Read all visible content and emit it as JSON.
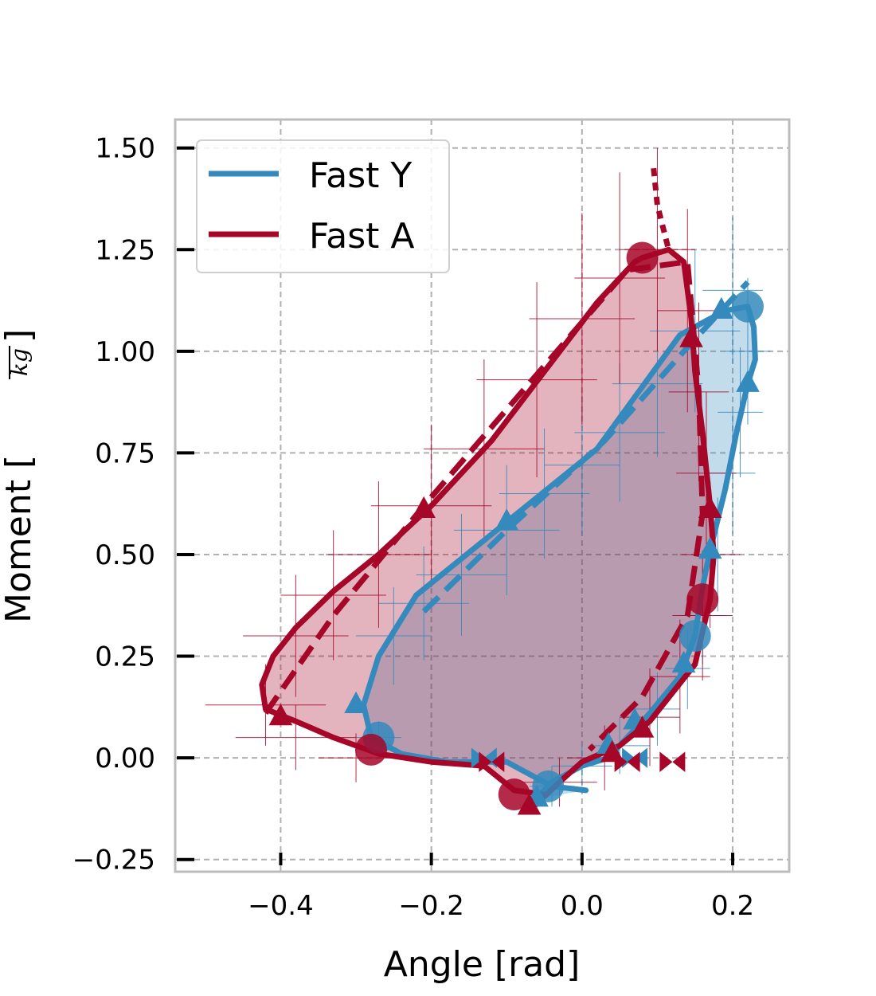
{
  "colors": {
    "fast_y": "#348abd",
    "fast_a": "#a60628",
    "grid": "#b0b0b0",
    "frame": "#bcbcbc"
  },
  "chart_data": {
    "type": "line",
    "title": "",
    "xlabel": "Angle [rad]",
    "ylabel": "Moment [",
    "ylabel_unit": "kg",
    "xlim": [
      -0.54,
      0.275
    ],
    "ylim": [
      -0.28,
      1.57
    ],
    "x_ticks": [
      -0.4,
      -0.2,
      0.0,
      0.2
    ],
    "x_tick_labels": [
      "−0.4",
      "−0.2",
      "0.0",
      "0.2"
    ],
    "y_ticks": [
      -0.25,
      0.0,
      0.25,
      0.5,
      0.75,
      1.0,
      1.25,
      1.5
    ],
    "y_tick_labels": [
      "−0.25",
      "0.00",
      "0.25",
      "0.50",
      "0.75",
      "1.00",
      "1.25",
      "1.50"
    ],
    "grid": true,
    "legend": {
      "placement": "top-left",
      "entries": [
        "Fast Y",
        "Fast A"
      ]
    },
    "series": [
      {
        "name": "Fast Y",
        "color": "#348abd",
        "loop": [
          [
            0.005,
            -0.08
          ],
          [
            -0.04,
            -0.07
          ],
          [
            -0.1,
            -0.01
          ],
          [
            -0.18,
            -0.01
          ],
          [
            -0.24,
            0.01
          ],
          [
            -0.28,
            0.05
          ],
          [
            -0.29,
            0.13
          ],
          [
            -0.27,
            0.25
          ],
          [
            -0.22,
            0.4
          ],
          [
            -0.1,
            0.58
          ],
          [
            0.02,
            0.76
          ],
          [
            0.13,
            1.04
          ],
          [
            0.19,
            1.1
          ],
          [
            0.22,
            1.11
          ],
          [
            0.228,
            1.06
          ],
          [
            0.23,
            0.98
          ],
          [
            0.22,
            0.92
          ],
          [
            0.205,
            0.8
          ],
          [
            0.19,
            0.66
          ],
          [
            0.17,
            0.51
          ],
          [
            0.16,
            0.42
          ],
          [
            0.15,
            0.3
          ],
          [
            0.13,
            0.2
          ],
          [
            0.09,
            0.11
          ],
          [
            0.05,
            0.03
          ],
          [
            0.035,
            0.0
          ],
          [
            0.0,
            -0.02
          ],
          [
            -0.04,
            -0.06
          ],
          [
            -0.06,
            -0.1
          ]
        ],
        "dashed": [
          [
            -0.21,
            0.36
          ],
          [
            -0.1,
            0.56
          ],
          [
            0.03,
            0.78
          ],
          [
            0.14,
            1.01
          ],
          [
            0.22,
            1.17
          ]
        ],
        "markers_circle": [
          [
            -0.27,
            0.05
          ],
          [
            0.22,
            1.11
          ],
          [
            0.15,
            0.3
          ],
          [
            -0.045,
            -0.07
          ]
        ],
        "markers_triangle": [
          [
            -0.3,
            0.13
          ],
          [
            -0.1,
            0.58
          ],
          [
            0.185,
            1.1
          ],
          [
            0.22,
            0.92
          ],
          [
            0.17,
            0.51
          ],
          [
            0.135,
            0.23
          ],
          [
            0.07,
            0.09
          ],
          [
            0.035,
            0.03
          ],
          [
            -0.06,
            -0.1
          ]
        ],
        "markers_bowtie": [
          [
            -0.13,
            0.0
          ],
          [
            0.07,
            0.0
          ]
        ],
        "errorbars": [
          [
            -0.27,
            0.05,
            0.03,
            0.04
          ],
          [
            -0.25,
            0.3,
            0.05,
            0.12
          ],
          [
            -0.21,
            0.38,
            0.06,
            0.14
          ],
          [
            -0.16,
            0.45,
            0.06,
            0.15
          ],
          [
            -0.1,
            0.56,
            0.07,
            0.16
          ],
          [
            -0.05,
            0.65,
            0.06,
            0.16
          ],
          [
            0.0,
            0.72,
            0.05,
            0.17
          ],
          [
            0.05,
            0.8,
            0.06,
            0.17
          ],
          [
            0.1,
            0.92,
            0.06,
            0.18
          ],
          [
            0.15,
            1.05,
            0.06,
            0.2
          ],
          [
            0.2,
            1.15,
            0.04,
            0.18
          ],
          [
            0.22,
            1.0,
            0.03,
            0.18
          ],
          [
            0.21,
            0.85,
            0.03,
            0.16
          ],
          [
            0.2,
            0.7,
            0.03,
            0.15
          ],
          [
            0.18,
            0.5,
            0.03,
            0.14
          ],
          [
            0.16,
            0.35,
            0.03,
            0.12
          ],
          [
            0.14,
            0.22,
            0.03,
            0.1
          ],
          [
            0.1,
            0.12,
            0.03,
            0.09
          ],
          [
            0.05,
            0.03,
            0.04,
            0.07
          ],
          [
            0.0,
            -0.02,
            0.04,
            0.05
          ],
          [
            -0.04,
            -0.07,
            0.03,
            0.05
          ]
        ]
      },
      {
        "name": "Fast A",
        "color": "#a60628",
        "loop": [
          [
            -0.05,
            -0.09
          ],
          [
            -0.09,
            -0.08
          ],
          [
            -0.13,
            -0.02
          ],
          [
            -0.2,
            -0.01
          ],
          [
            -0.27,
            0.01
          ],
          [
            -0.33,
            0.05
          ],
          [
            -0.38,
            0.09
          ],
          [
            -0.42,
            0.12
          ],
          [
            -0.425,
            0.18
          ],
          [
            -0.41,
            0.25
          ],
          [
            -0.38,
            0.32
          ],
          [
            -0.33,
            0.41
          ],
          [
            -0.27,
            0.5
          ],
          [
            -0.2,
            0.62
          ],
          [
            -0.12,
            0.78
          ],
          [
            -0.05,
            0.95
          ],
          [
            0.02,
            1.12
          ],
          [
            0.07,
            1.22
          ],
          [
            0.08,
            1.23
          ],
          [
            0.115,
            1.25
          ],
          [
            0.135,
            1.22
          ],
          [
            0.145,
            1.08
          ],
          [
            0.15,
            0.95
          ],
          [
            0.16,
            0.8
          ],
          [
            0.17,
            0.62
          ],
          [
            0.175,
            0.5
          ],
          [
            0.17,
            0.39
          ],
          [
            0.15,
            0.23
          ],
          [
            0.09,
            0.09
          ],
          [
            0.05,
            0.03
          ],
          [
            0.0,
            -0.01
          ],
          [
            -0.03,
            -0.06
          ],
          [
            -0.07,
            -0.13
          ]
        ],
        "dashed": [
          [
            -0.42,
            0.11
          ],
          [
            -0.33,
            0.35
          ],
          [
            -0.21,
            0.62
          ],
          [
            -0.08,
            0.9
          ],
          [
            0.06,
            1.2
          ],
          [
            0.14,
            1.22
          ],
          [
            0.155,
            0.9
          ],
          [
            0.16,
            0.6
          ],
          [
            0.14,
            0.35
          ],
          [
            0.08,
            0.15
          ],
          [
            0.01,
            0.02
          ]
        ],
        "dotted": [
          [
            0.095,
            1.45
          ],
          [
            0.1,
            1.36
          ],
          [
            0.115,
            1.25
          ]
        ],
        "markers_circle": [
          [
            -0.28,
            0.02
          ],
          [
            0.08,
            1.23
          ],
          [
            0.16,
            0.39
          ],
          [
            -0.09,
            -0.09
          ]
        ],
        "markers_triangle": [
          [
            -0.4,
            0.1
          ],
          [
            -0.21,
            0.61
          ],
          [
            0.145,
            1.03
          ],
          [
            0.17,
            0.61
          ],
          [
            0.08,
            0.07
          ],
          [
            0.04,
            0.01
          ],
          [
            -0.07,
            -0.12
          ]
        ],
        "markers_bowtie": [
          [
            -0.12,
            -0.01
          ],
          [
            0.06,
            -0.01
          ],
          [
            0.12,
            -0.01
          ]
        ],
        "errorbars": [
          [
            -0.42,
            0.13,
            0.08,
            0.1
          ],
          [
            -0.38,
            0.3,
            0.07,
            0.15
          ],
          [
            -0.33,
            0.4,
            0.07,
            0.16
          ],
          [
            -0.27,
            0.5,
            0.07,
            0.18
          ],
          [
            -0.2,
            0.62,
            0.08,
            0.2
          ],
          [
            -0.13,
            0.76,
            0.08,
            0.22
          ],
          [
            -0.06,
            0.93,
            0.08,
            0.24
          ],
          [
            0.0,
            1.08,
            0.07,
            0.26
          ],
          [
            0.05,
            1.18,
            0.06,
            0.26
          ],
          [
            0.1,
            1.25,
            0.05,
            0.25
          ],
          [
            0.14,
            1.1,
            0.04,
            0.25
          ],
          [
            0.155,
            0.9,
            0.04,
            0.22
          ],
          [
            0.165,
            0.7,
            0.04,
            0.2
          ],
          [
            0.17,
            0.5,
            0.04,
            0.18
          ],
          [
            0.16,
            0.35,
            0.04,
            0.16
          ],
          [
            0.13,
            0.2,
            0.04,
            0.14
          ],
          [
            0.09,
            0.1,
            0.04,
            0.12
          ],
          [
            0.03,
            0.0,
            0.05,
            0.08
          ],
          [
            -0.03,
            -0.06,
            0.05,
            0.06
          ],
          [
            -0.3,
            0.0,
            0.05,
            0.06
          ],
          [
            -0.38,
            0.05,
            0.08,
            0.08
          ]
        ]
      }
    ]
  }
}
